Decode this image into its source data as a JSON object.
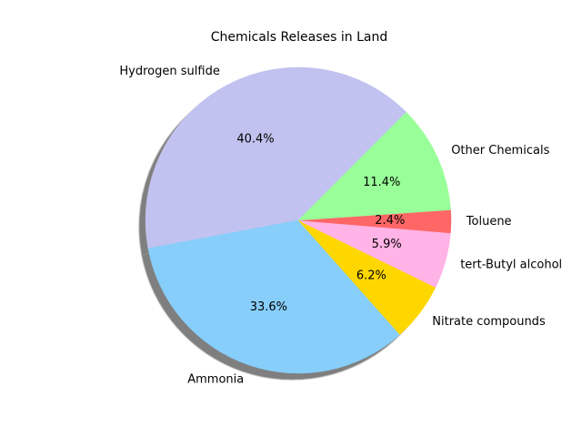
{
  "chart_data": {
    "type": "pie",
    "title": "Chemicals Releases in Land",
    "labels": [
      "Hydrogen sulfide",
      "Ammonia",
      "Nitrate compounds",
      "tert-Butyl alcohol",
      "Toluene",
      "Other Chemicals"
    ],
    "values": [
      40.4,
      33.6,
      6.2,
      5.9,
      2.4,
      11.4
    ],
    "value_labels": [
      "40.4%",
      "33.6%",
      "6.2%",
      "5.9%",
      "2.4%",
      "11.4%"
    ],
    "colors": [
      "#c2c2f0",
      "#87cefa",
      "#ffd700",
      "#ffb3e6",
      "#ff6666",
      "#99ff99"
    ],
    "start_angle_degrees": 45,
    "direction": "counterclockwise",
    "shadow": true,
    "legend": "none"
  }
}
